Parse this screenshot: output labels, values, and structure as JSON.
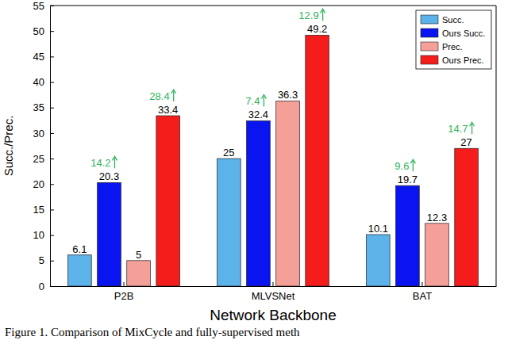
{
  "chart_data": {
    "type": "bar",
    "x_label": "Network Backbone",
    "y_label": "Succ./Prec.",
    "caption": "Figure 1. Comparison of MixCycle and fully-supervised meth",
    "categories": [
      "P2B",
      "MLVSNet",
      "BAT"
    ],
    "series": [
      {
        "name": "Succ.",
        "color": "#5cb3ea",
        "values": [
          6.1,
          25,
          10.1
        ]
      },
      {
        "name": "Ours Succ.",
        "color": "#0a14f0",
        "values": [
          20.3,
          32.4,
          19.7
        ]
      },
      {
        "name": "Prec.",
        "color": "#f4a098",
        "values": [
          5,
          36.3,
          12.3
        ]
      },
      {
        "name": "Ours Prec.",
        "color": "#f51c1c",
        "values": [
          33.4,
          49.2,
          27
        ]
      }
    ],
    "annotations": [
      {
        "text": "14.2",
        "category": "P2B",
        "series": "Ours Succ.",
        "color": "#2eb35a"
      },
      {
        "text": "28.4",
        "category": "P2B",
        "series": "Ours Prec.",
        "color": "#2eb35a"
      },
      {
        "text": "7.4",
        "category": "MLVSNet",
        "series": "Ours Succ.",
        "color": "#2eb35a"
      },
      {
        "text": "12.9",
        "category": "MLVSNet",
        "series": "Ours Prec.",
        "color": "#2eb35a"
      },
      {
        "text": "9.6",
        "category": "BAT",
        "series": "Ours Succ.",
        "color": "#2eb35a"
      },
      {
        "text": "14.7",
        "category": "BAT",
        "series": "Ours Prec.",
        "color": "#2eb35a"
      }
    ],
    "ylim": [
      0,
      55
    ],
    "yticks": [
      0,
      5,
      10,
      15,
      20,
      25,
      30,
      35,
      40,
      45,
      50,
      55
    ],
    "grid": false,
    "legend": "upper right",
    "data_labels": true
  }
}
